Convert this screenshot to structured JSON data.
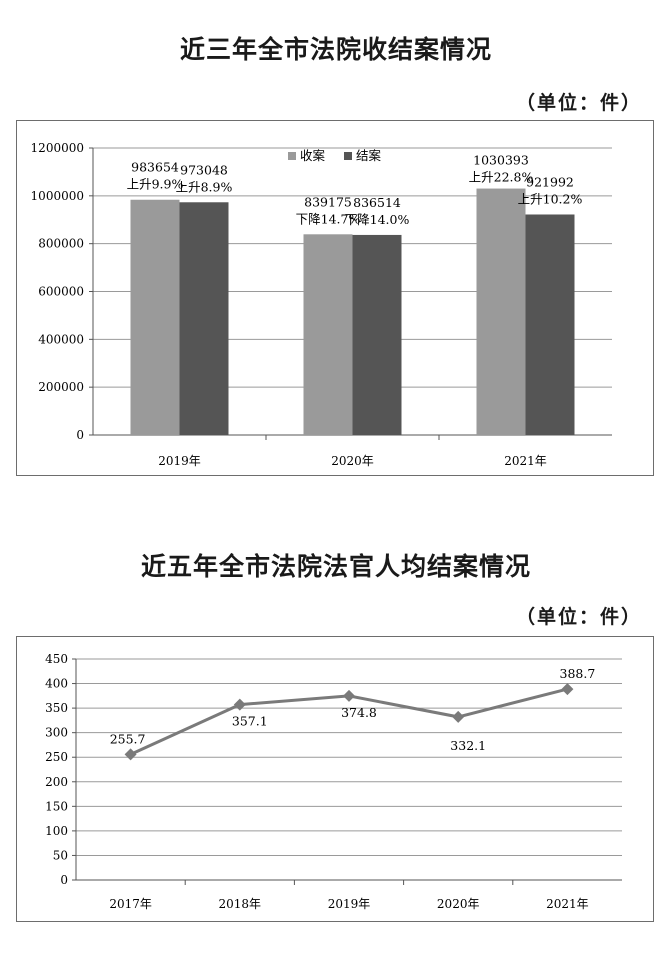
{
  "chart_data": [
    {
      "type": "bar",
      "title": "近三年全市法院收结案情况",
      "unit": "（单位：件）",
      "categories": [
        "2019年",
        "2020年",
        "2021年"
      ],
      "series": [
        {
          "name": "收案",
          "color": "#9a9a9a",
          "values": [
            983654,
            839175,
            1030393
          ]
        },
        {
          "name": "结案",
          "color": "#555555",
          "values": [
            973048,
            836514,
            921992
          ]
        }
      ],
      "annotations": [
        [
          "上升9.9%",
          "上升8.9%"
        ],
        [
          "下降14.7%",
          "下降14.0%"
        ],
        [
          "上升22.8%",
          "上升10.2%"
        ]
      ],
      "yticks": [
        0,
        200000,
        400000,
        600000,
        800000,
        1000000,
        1200000
      ],
      "ylim": [
        0,
        1200000
      ],
      "legend": "top-center",
      "grid": true
    },
    {
      "type": "line",
      "title": "近五年全市法院法官人均结案情况",
      "unit": "（单位：件）",
      "categories": [
        "2017年",
        "2018年",
        "2019年",
        "2020年",
        "2021年"
      ],
      "series": [
        {
          "color": "#7a7a7a",
          "values": [
            255.7,
            357.1,
            374.8,
            332.1,
            388.7
          ]
        }
      ],
      "label_position": [
        "above",
        "below",
        "below",
        "below",
        "above"
      ],
      "yticks": [
        0,
        50,
        100,
        150,
        200,
        250,
        300,
        350,
        400,
        450
      ],
      "ylim": [
        0,
        450
      ],
      "grid": true
    }
  ]
}
